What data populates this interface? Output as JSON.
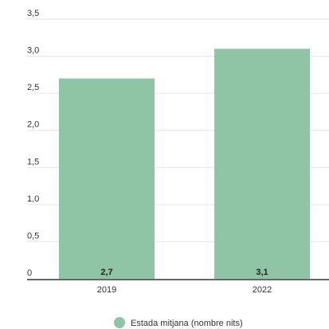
{
  "chart_data": {
    "type": "bar",
    "categories": [
      "2019",
      "2022"
    ],
    "series": [
      {
        "name": "Estada mitjana (nombre nits)",
        "values": [
          2.7,
          3.1
        ],
        "data_labels": [
          "2,7",
          "3,1"
        ]
      }
    ],
    "y_ticks": [
      0,
      0.5,
      1.0,
      1.5,
      2.0,
      2.5,
      3.0,
      3.5
    ],
    "y_tick_labels": [
      "0",
      "0,5",
      "1,0",
      "1,5",
      "2,0",
      "2,5",
      "3,0",
      "3,5"
    ],
    "ylim": [
      0,
      3.5
    ],
    "grid": true,
    "legend_position": "bottom-center",
    "title": "",
    "xlabel": "",
    "ylabel": ""
  },
  "colors": {
    "bar": "#8fc4a5",
    "grid": "#e6e6e6",
    "axis": "#333333"
  }
}
